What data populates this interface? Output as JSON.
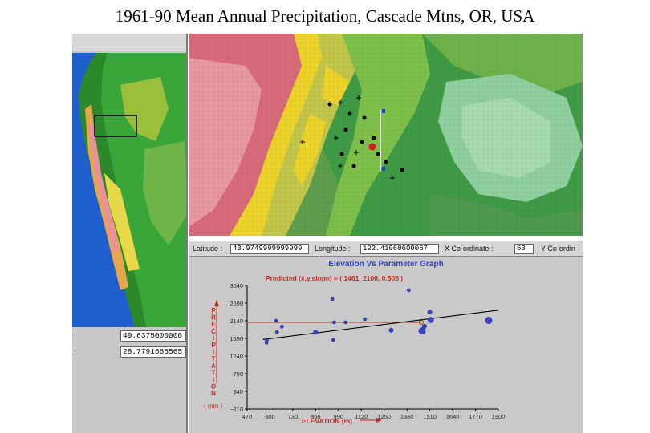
{
  "slide": {
    "title": "1961-90 Mean Annual Precipitation, Cascade Mtns, OR, USA"
  },
  "left_panel": {
    "field1_value": "49.6375000000",
    "field2_value": "28.7791666565"
  },
  "coordinate_bar": {
    "latitude_label": "Latitude :",
    "latitude_value": "43.9749999999999",
    "longitude_label": "Longitude :",
    "longitude_value": "122.41060600067",
    "x_label": "X Co-ordinate :",
    "x_value": "63",
    "y_label": "Y Co-ordin"
  },
  "graph": {
    "title": "Elevation Vs Parameter Graph",
    "predicted_text": "Predicted (x,y,slope) = ( 1461, 2100, 0.505 )",
    "ylabel_letters": [
      "P",
      "R",
      "E",
      "C",
      "I",
      "P",
      "I",
      "T",
      "A",
      "T",
      "I",
      "O",
      "N"
    ],
    "ylabel_unit": "( mm )",
    "xlabel": "ELEVATION (m)",
    "colors": {
      "points": "#3a45c8",
      "fit_line": "#000000",
      "predicted_line": "#a04020",
      "label_red": "#c03020",
      "axis_text": "#2a2a2a"
    }
  },
  "chart_data": {
    "type": "scatter",
    "title": "Elevation Vs Parameter Graph",
    "xlabel": "ELEVATION (m)",
    "ylabel": "PRECIPITATION ( mm )",
    "xlim": [
      470,
      1900
    ],
    "ylim": [
      -110,
      3040
    ],
    "x_ticks": [
      470,
      600,
      730,
      860,
      990,
      1120,
      1250,
      1380,
      1510,
      1640,
      1770,
      1900
    ],
    "y_ticks": [
      -110,
      340,
      790,
      1240,
      1690,
      2140,
      2590,
      3040
    ],
    "x_tick_labels": [
      "470",
      "600",
      "730",
      "860",
      "990",
      "1120",
      "1250",
      "1380",
      "1510",
      "1640",
      "1770",
      "1900"
    ],
    "y_tick_labels": [
      "−110",
      "340",
      "790",
      "1240",
      "1690",
      "2140",
      "2590",
      "3040"
    ],
    "points": [
      {
        "x": 580,
        "y": 1580,
        "size": 2
      },
      {
        "x": 582,
        "y": 1650,
        "size": 2
      },
      {
        "x": 635,
        "y": 2140,
        "size": 2
      },
      {
        "x": 640,
        "y": 1850,
        "size": 2
      },
      {
        "x": 668,
        "y": 1990,
        "size": 2
      },
      {
        "x": 860,
        "y": 1850,
        "size": 3
      },
      {
        "x": 955,
        "y": 2690,
        "size": 2
      },
      {
        "x": 960,
        "y": 1650,
        "size": 2
      },
      {
        "x": 965,
        "y": 2100,
        "size": 2
      },
      {
        "x": 1030,
        "y": 2100,
        "size": 2
      },
      {
        "x": 1140,
        "y": 2180,
        "size": 2
      },
      {
        "x": 1290,
        "y": 1900,
        "size": 3
      },
      {
        "x": 1390,
        "y": 2920,
        "size": 2
      },
      {
        "x": 1466,
        "y": 1880,
        "size": 5
      },
      {
        "x": 1480,
        "y": 2000,
        "size": 3
      },
      {
        "x": 1510,
        "y": 2360,
        "size": 3
      },
      {
        "x": 1515,
        "y": 2160,
        "size": 4
      },
      {
        "x": 1845,
        "y": 2150,
        "size": 5
      }
    ],
    "fit_line": {
      "x1": 560,
      "y1": 1660,
      "x2": 1900,
      "y2": 2410
    },
    "predicted": {
      "x": 1461,
      "y": 2100,
      "slope": 0.505
    },
    "grid": false
  }
}
